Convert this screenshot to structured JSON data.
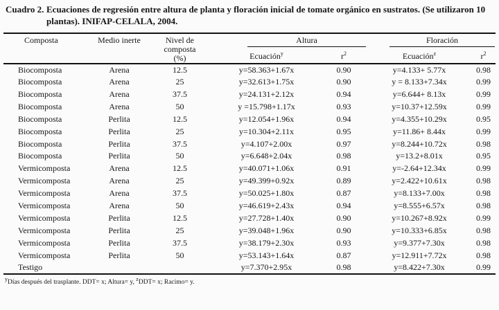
{
  "title": {
    "label": "Cuadro 2.",
    "text": "Ecuaciones de regresión entre altura de planta y floración inicial de tomate orgánico en sustratos. (Se utilizaron 10 plantas). INIFAP-CELALA, 2004."
  },
  "table": {
    "headers": {
      "composta": "Composta",
      "medio_inerte": "Medio inerte",
      "nivel_composta": "Nivel de composta (%)",
      "group_altura": "Altura",
      "group_floracion": "Floración",
      "ecuacion": "Ecuación",
      "ecuacion_altura_sup": "y",
      "ecuacion_floracion_sup": "z",
      "r": "r",
      "r_sup": "2"
    },
    "row_keys": [
      "composta",
      "medio",
      "nivel",
      "eq_altura",
      "r2_altura",
      "eq_floracion",
      "r2_floracion"
    ],
    "rows": [
      {
        "composta": "Biocomposta",
        "medio": "Arena",
        "nivel": "12.5",
        "eq_altura": "y=58.363+1.67x",
        "r2_altura": "0.90",
        "eq_floracion": "y=4.133+ 5.77x",
        "r2_floracion": "0.98"
      },
      {
        "composta": "Biocomposta",
        "medio": "Arena",
        "nivel": "25",
        "eq_altura": "y=32.613+1.75x",
        "r2_altura": "0.90",
        "eq_floracion": "y = 8.133+7.34x",
        "r2_floracion": "0.99"
      },
      {
        "composta": "Biocomposta",
        "medio": "Arena",
        "nivel": "37.5",
        "eq_altura": "y=24.131+2.12x",
        "r2_altura": "0.94",
        "eq_floracion": "y=6.644+ 8.13x",
        "r2_floracion": "0.99"
      },
      {
        "composta": "Biocomposta",
        "medio": "Arena",
        "nivel": "50",
        "eq_altura": "y =15.798+1.17x",
        "r2_altura": "0.93",
        "eq_floracion": "y=10.37+12.59x",
        "r2_floracion": "0.99"
      },
      {
        "composta": "Biocomposta",
        "medio": "Perlita",
        "nivel": "12.5",
        "eq_altura": "y=12.054+1.96x",
        "r2_altura": "0.94",
        "eq_floracion": "y=4.355+10.29x",
        "r2_floracion": "0.95"
      },
      {
        "composta": "Biocomposta",
        "medio": "Perlita",
        "nivel": "25",
        "eq_altura": "y=10.304+2.11x",
        "r2_altura": "0.95",
        "eq_floracion": "y=11.86+ 8.44x",
        "r2_floracion": "0.99"
      },
      {
        "composta": "Biocomposta",
        "medio": "Perlita",
        "nivel": "37.5",
        "eq_altura": "y=4.107+2.00x",
        "r2_altura": "0.97",
        "eq_floracion": "y=8.244+10.72x",
        "r2_floracion": "0.98"
      },
      {
        "composta": "Biocomposta",
        "medio": "Perlita",
        "nivel": "50",
        "eq_altura": "y=6.648+2.04x",
        "r2_altura": "0.98",
        "eq_floracion": "y=13.2+8.01x",
        "r2_floracion": "0.95"
      },
      {
        "composta": "Vermicomposta",
        "medio": "Arena",
        "nivel": "12.5",
        "eq_altura": "y=40.071+1.06x",
        "r2_altura": "0.91",
        "eq_floracion": "y=-2.64+12.34x",
        "r2_floracion": "0.99"
      },
      {
        "composta": "Vermicomposta",
        "medio": "Arena",
        "nivel": "25",
        "eq_altura": "y=49.399+0.92x",
        "r2_altura": "0.89",
        "eq_floracion": "y=2.422+10.61x",
        "r2_floracion": "0.98"
      },
      {
        "composta": "Vermicomposta",
        "medio": "Arena",
        "nivel": "37.5",
        "eq_altura": "y=50.025+1.80x",
        "r2_altura": "0.87",
        "eq_floracion": "y=8.133+7.00x",
        "r2_floracion": "0.98"
      },
      {
        "composta": "Vermicomposta",
        "medio": "Arena",
        "nivel": "50",
        "eq_altura": "y=46.619+2.43x",
        "r2_altura": "0.94",
        "eq_floracion": "y=8.555+6.57x",
        "r2_floracion": "0.98"
      },
      {
        "composta": "Vermicomposta",
        "medio": "Perlita",
        "nivel": "12.5",
        "eq_altura": "y=27.728+1.40x",
        "r2_altura": "0.90",
        "eq_floracion": "y=10.267+8.92x",
        "r2_floracion": "0.99"
      },
      {
        "composta": "Vermicomposta",
        "medio": "Perlita",
        "nivel": "25",
        "eq_altura": "y=39.048+1.96x",
        "r2_altura": "0.90",
        "eq_floracion": "y=10.333+6.85x",
        "r2_floracion": "0.98"
      },
      {
        "composta": "Vermicomposta",
        "medio": "Perlita",
        "nivel": "37.5",
        "eq_altura": "y=38.179+2.30x",
        "r2_altura": "0.93",
        "eq_floracion": "y=9.377+7.30x",
        "r2_floracion": "0.98"
      },
      {
        "composta": "Vermicomposta",
        "medio": "Perlita",
        "nivel": "50",
        "eq_altura": "y=53.143+1.64x",
        "r2_altura": "0.87",
        "eq_floracion": "y=12.911+7.72x",
        "r2_floracion": "0.98"
      },
      {
        "composta": "Testigo",
        "medio": "",
        "nivel": "",
        "eq_altura": "y=7.370+2.95x",
        "r2_altura": "0.98",
        "eq_floracion": "y=8.422+7.30x",
        "r2_floracion": "0.99"
      }
    ]
  },
  "footnote": {
    "sup1": "y",
    "part1": "Días después del trasplante. DDT= x; Altura= y, ",
    "sup2": "z",
    "part2": "DDT= x; Racimo= y."
  }
}
